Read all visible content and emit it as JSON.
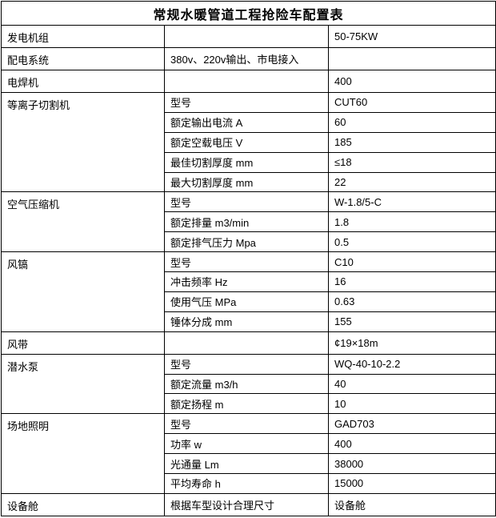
{
  "table": {
    "title": "常规水暖管道工程抢险车配置表",
    "columns": {
      "col1_width": 204,
      "col2_width": 205,
      "col3_width": 209
    },
    "border_color": "#000000",
    "background_color": "#ffffff",
    "sections": [
      {
        "name": "发电机组",
        "rows": [
          {
            "label": "",
            "value": "50-75KW"
          }
        ]
      },
      {
        "name": "配电系统",
        "rows": [
          {
            "label": "380v、220v输出、市电接入",
            "value": ""
          }
        ]
      },
      {
        "name": "电焊机",
        "rows": [
          {
            "label": "",
            "value": "400"
          }
        ]
      },
      {
        "name": "等离子切割机",
        "rows": [
          {
            "label": "型号",
            "value": "CUT60"
          },
          {
            "label": "额定输出电流 A",
            "value": "60"
          },
          {
            "label": "额定空载电压 V",
            "value": "185"
          },
          {
            "label": "最佳切割厚度 mm",
            "value": "≤18"
          },
          {
            "label": "最大切割厚度 mm",
            "value": "22"
          }
        ]
      },
      {
        "name": "空气压缩机",
        "rows": [
          {
            "label": "型号",
            "value": "W-1.8/5-C"
          },
          {
            "label": "额定排量 m3/min",
            "value": "1.8"
          },
          {
            "label": "额定排气压力 Mpa",
            "value": "0.5"
          }
        ]
      },
      {
        "name": "风镐",
        "rows": [
          {
            "label": "型号",
            "value": "C10"
          },
          {
            "label": "冲击频率 Hz",
            "value": "16"
          },
          {
            "label": "使用气压 MPa",
            "value": "0.63"
          },
          {
            "label": "锤体分成 mm",
            "value": "155"
          }
        ]
      },
      {
        "name": "风带",
        "rows": [
          {
            "label": "",
            "value": "¢19×18m"
          }
        ]
      },
      {
        "name": "潜水泵",
        "rows": [
          {
            "label": "型号",
            "value": "WQ-40-10-2.2"
          },
          {
            "label": "额定流量 m3/h",
            "value": "40"
          },
          {
            "label": "额定扬程 m",
            "value": "10"
          }
        ]
      },
      {
        "name": "场地照明",
        "rows": [
          {
            "label": "型号",
            "value": "GAD703"
          },
          {
            "label": "功率 w",
            "value": "400"
          },
          {
            "label": "光通量 Lm",
            "value": "38000"
          },
          {
            "label": "平均寿命 h",
            "value": "15000"
          }
        ]
      },
      {
        "name": "设备舱",
        "rows": [
          {
            "label": "根据车型设计合理尺寸",
            "value": "设备舱"
          }
        ]
      }
    ]
  }
}
